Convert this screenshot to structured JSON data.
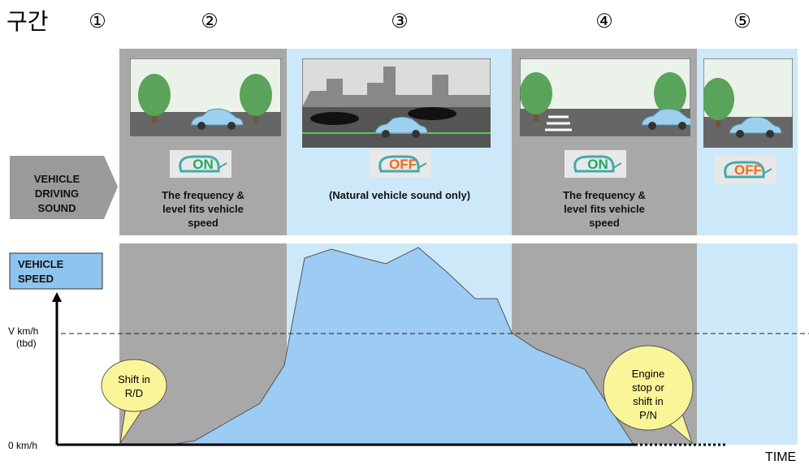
{
  "header": {
    "title": "구간",
    "section_numbers": [
      "①",
      "②",
      "③",
      "④",
      "⑤"
    ]
  },
  "driving_sound": {
    "label": [
      "VEHICLE",
      "DRIVING",
      "SOUND"
    ]
  },
  "sections": [
    {
      "badge": "ON",
      "caption": [
        "The frequency &",
        "level fits vehicle",
        "speed"
      ]
    },
    {
      "badge": "OFF",
      "caption": [
        "(Natural vehicle sound only)"
      ]
    },
    {
      "badge": "ON",
      "caption": [
        "The frequency &",
        "level fits vehicle",
        "speed"
      ]
    },
    {
      "badge": "OFF",
      "caption": []
    }
  ],
  "speed_chart": {
    "label": [
      "VEHICLE",
      "SPEED"
    ],
    "v_label": [
      "V km/h",
      "(tbd)"
    ],
    "zero_label": "0 km/h",
    "x_axis": "TIME",
    "callouts": [
      {
        "text": [
          "Shift in",
          "R/D"
        ]
      },
      {
        "text": [
          "Engine",
          "stop or",
          "shift in",
          "P/N"
        ]
      }
    ]
  }
}
